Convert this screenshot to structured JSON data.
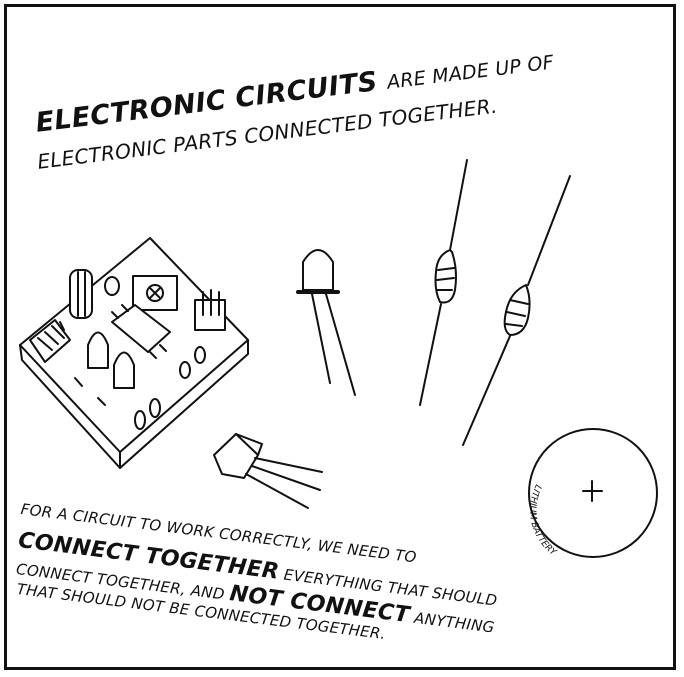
{
  "headline": {
    "line1_emphasis": "ELECTRONIC CIRCUITS",
    "line1_rest": "ARE MADE UP OF",
    "line2": "ELECTRONIC PARTS CONNECTED TOGETHER."
  },
  "body": {
    "line1": "FOR A CIRCUIT TO WORK CORRECTLY, WE NEED TO",
    "line2_emphasis": "CONNECT TOGETHER",
    "line2_rest": "EVERYTHING THAT SHOULD",
    "line3_start": "CONNECT TOGETHER, AND",
    "line3_emphasis": "NOT CONNECT",
    "line3_rest": "ANYTHING",
    "line4": "THAT SHOULD NOT BE CONNECTED TOGETHER."
  },
  "battery": {
    "label": "LITHIUM BATTERY",
    "polarity": "+"
  },
  "icons": [
    "circuit-board-icon",
    "led-icon",
    "resistor-icon",
    "transistor-icon",
    "coin-battery-icon"
  ]
}
